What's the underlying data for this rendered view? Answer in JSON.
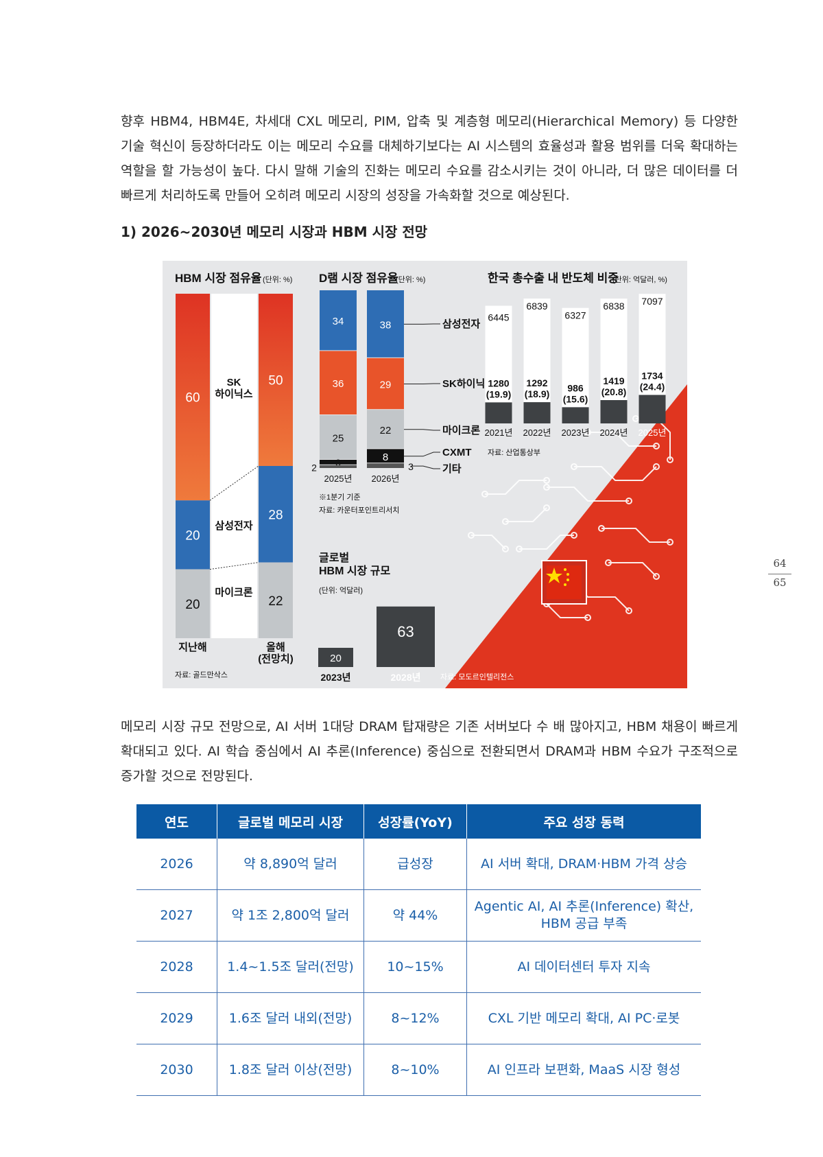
{
  "intro_paragraph": "향후 HBM4, HBM4E, 차세대 CXL 메모리, PIM, 압축 및 계층형 메모리(Hierarchical Memory) 등 다양한 기술 혁신이 등장하더라도 이는 메모리 수요를 대체하기보다는 AI 시스템의 효율성과 활용 범위를 더욱 확대하는 역할을 할 가능성이 높다. 다시 말해 기술의 진화는 메모리 수요를 감소시키는 것이 아니라, 더 많은 데이터를 더 빠르게 처리하도록 만들어 오히려 메모리 시장의 성장을 가속화할 것으로 예상된다.",
  "section_title": "1) 2026~2030년 메모리 시장과 HBM 시장 전망",
  "infographic": {
    "hbm_share": {
      "title": "HBM 시장 점유율",
      "unit": "(단위: %)",
      "col_labels": [
        "지난해",
        "올해\n(전망치)"
      ],
      "companies": [
        "SK\n하이닉스",
        "삼성전자",
        "마이크론"
      ],
      "source": "자료: 골드만삭스"
    },
    "dram_share": {
      "title": "D램 시장 점유율",
      "unit": "(단위: %)",
      "years": [
        "2025년",
        "2026년"
      ],
      "companies": [
        "삼성전자",
        "SK하이닉스",
        "마이크론",
        "CXMT",
        "기타"
      ],
      "note": "※1분기 기준",
      "source": "자료: 카운터포인트리서치"
    },
    "korea_exports": {
      "title": "한국 총수출 내 반도체 비중",
      "unit": "(단위: 억달러, %)",
      "source": "자료: 산업통상부"
    },
    "global_hbm": {
      "title": "글로벌\nHBM 시장 규모",
      "unit": "(단위: 억달러)",
      "source": "자료: 모도르인텔리전스"
    }
  },
  "chart_data": [
    {
      "type": "bar",
      "title": "HBM 시장 점유율",
      "unit": "(단위: %)",
      "categories": [
        "지난해",
        "올해(전망치)"
      ],
      "series": [
        {
          "name": "SK하이닉스",
          "values": [
            60,
            50
          ]
        },
        {
          "name": "삼성전자",
          "values": [
            20,
            28
          ]
        },
        {
          "name": "마이크론",
          "values": [
            20,
            22
          ]
        }
      ],
      "stacked": true
    },
    {
      "type": "bar",
      "title": "D램 시장 점유율",
      "unit": "(단위: %)",
      "categories": [
        "2025년",
        "2026년"
      ],
      "series": [
        {
          "name": "삼성전자",
          "values": [
            34,
            38
          ]
        },
        {
          "name": "SK하이닉스",
          "values": [
            36,
            29
          ]
        },
        {
          "name": "마이크론",
          "values": [
            25,
            22
          ]
        },
        {
          "name": "CXMT",
          "values": [
            3,
            8
          ]
        },
        {
          "name": "기타",
          "values": [
            2,
            3
          ]
        }
      ],
      "stacked": true
    },
    {
      "type": "bar",
      "title": "한국 총수출 내 반도체 비중",
      "unit": "(단위: 억달러, %)",
      "categories": [
        "2021년",
        "2022년",
        "2023년",
        "2024년",
        "2025년"
      ],
      "series": [
        {
          "name": "",
          "values": [
            6445,
            6839,
            6327,
            6838,
            7097
          ]
        },
        {
          "name": "",
          "values": [
            1280,
            1292,
            986,
            1419,
            1734
          ]
        }
      ],
      "share_percent": [
        "(19.9)",
        "(18.9)",
        "(15.6)",
        "(20.8)",
        "(24.4)"
      ]
    },
    {
      "type": "bar",
      "title": "글로벌 HBM 시장 규모",
      "unit": "(단위: 억달러)",
      "categories": [
        "2023년",
        "2028년"
      ],
      "values": [
        20,
        63
      ]
    }
  ],
  "after_chart_paragraph": "메모리 시장 규모 전망으로, AI 서버 1대당 DRAM 탑재량은 기존 서버보다 수 배 많아지고, HBM 채용이 빠르게 확대되고 있다. AI 학습 중심에서 AI 추론(Inference) 중심으로 전환되면서 DRAM과 HBM 수요가 구조적으로 증가할 것으로 전망된다.",
  "table": {
    "headers": [
      "연도",
      "글로벌 메모리 시장",
      "성장률(YoY)",
      "주요 성장 동력"
    ],
    "rows": [
      [
        "2026",
        "약 8,890억 달러",
        "급성장",
        "AI 서버 확대, DRAM·HBM 가격 상승"
      ],
      [
        "2027",
        "약 1조 2,800억 달러",
        "약 44%",
        "Agentic AI, AI 추론(Inference) 확산, HBM 공급 부족"
      ],
      [
        "2028",
        "1.4~1.5조 달러(전망)",
        "10~15%",
        "AI 데이터센터 투자 지속"
      ],
      [
        "2029",
        "1.6조 달러 내외(전망)",
        "8~12%",
        "CXL 기반 메모리 확대, AI PC·로봇"
      ],
      [
        "2030",
        "1.8조 달러 이상(전망)",
        "8~10%",
        "AI 인프라 보편화, MaaS 시장 형성"
      ]
    ]
  },
  "page_numbers": [
    "64",
    "65"
  ],
  "colors": {
    "accent_red": "#e0351f",
    "accent_blue": "#2e6db4",
    "table_header": "#0b5aa5",
    "table_text": "#1b5fa8"
  }
}
